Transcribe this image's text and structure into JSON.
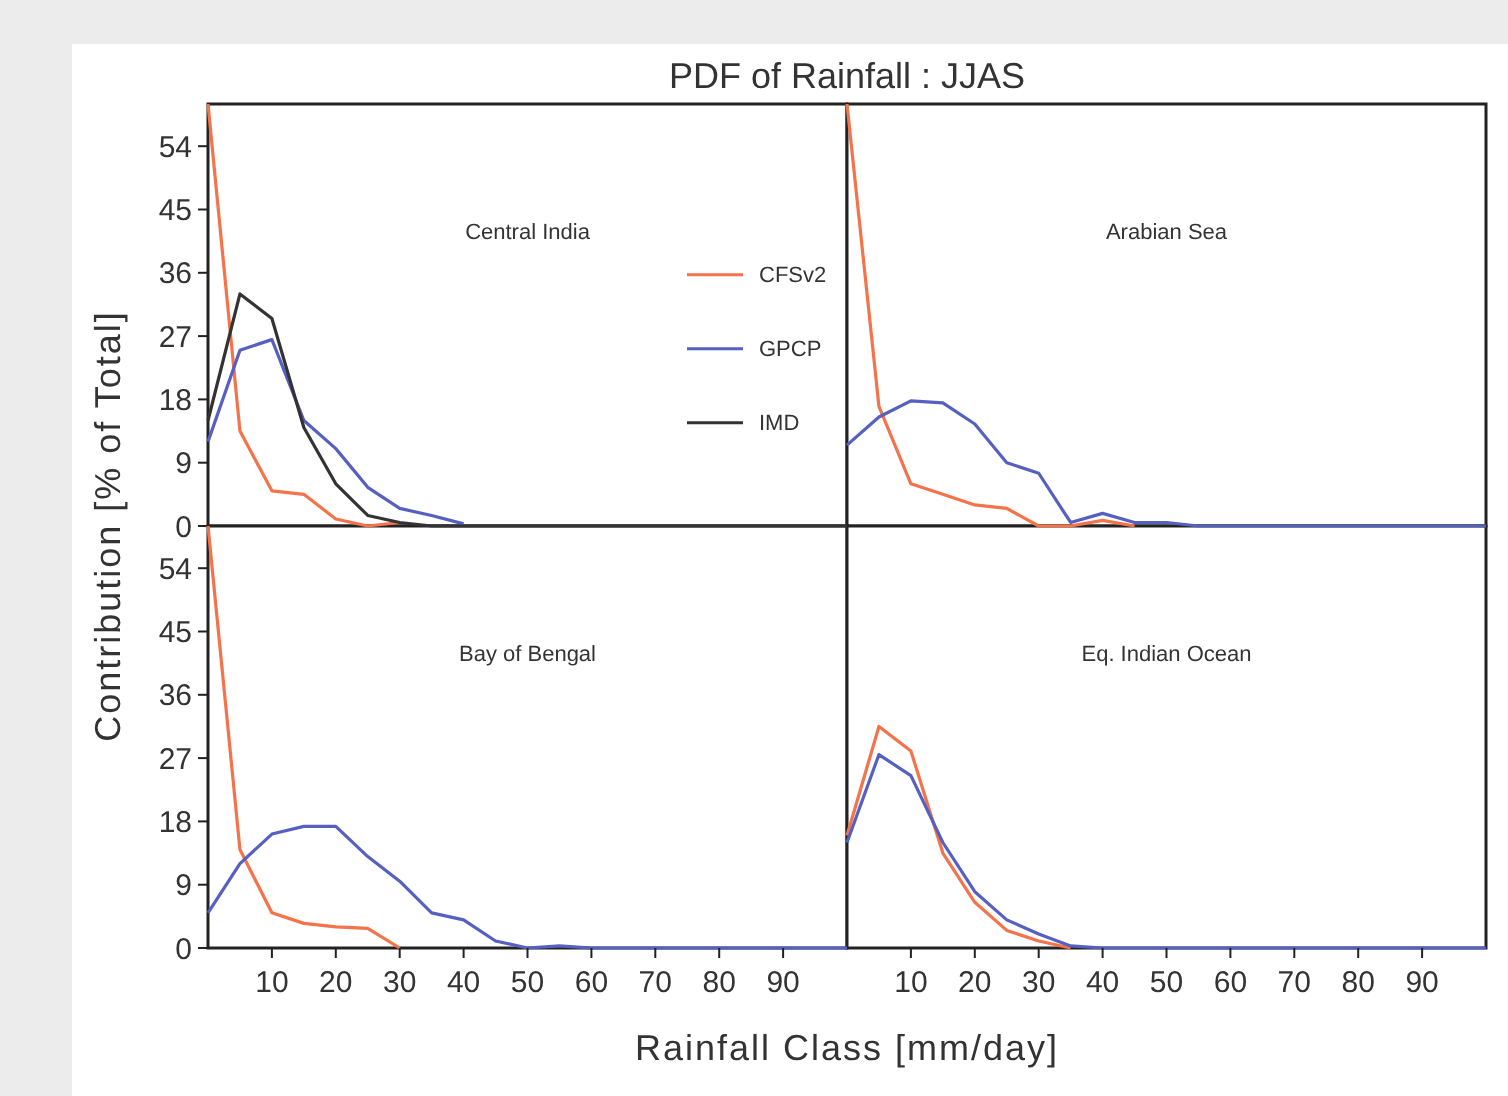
{
  "chart_data": [
    {
      "type": "line",
      "title": "PDF of Rainfall : JJAS",
      "subtitle": "Central India",
      "ylabel": "Contribution [% of Total]",
      "x": [
        0,
        5,
        10,
        15,
        20,
        25,
        30,
        35,
        40,
        45,
        50,
        55,
        60,
        65,
        70,
        75,
        80,
        85,
        90,
        95,
        100
      ],
      "xlim": [
        0,
        100
      ],
      "ylim": [
        0,
        60
      ],
      "yticks": [
        0,
        9,
        18,
        27,
        36,
        45,
        54
      ],
      "tick_labels": "y",
      "legend": "right",
      "series": [
        {
          "name": "CFSv2",
          "color": "#f4734a",
          "values": [
            60,
            13.5,
            5,
            4.5,
            1,
            0,
            0.5,
            null,
            null,
            null,
            null,
            null,
            null,
            null,
            null,
            null,
            null,
            null,
            null,
            null,
            null
          ]
        },
        {
          "name": "GPCP",
          "color": "#5560c0",
          "values": [
            12,
            25,
            26.5,
            15,
            11,
            5.5,
            2.5,
            1.5,
            0.3,
            null,
            null,
            null,
            null,
            null,
            null,
            null,
            null,
            null,
            null,
            null,
            null
          ]
        },
        {
          "name": "IMD",
          "color": "#333333",
          "values": [
            15,
            33,
            29.5,
            14,
            6,
            1.5,
            0.5,
            0,
            0,
            0,
            0,
            0,
            0,
            0,
            0,
            0,
            0,
            0,
            0,
            0,
            0
          ]
        }
      ]
    },
    {
      "type": "line",
      "subtitle": "Arabian Sea",
      "x": [
        0,
        5,
        10,
        15,
        20,
        25,
        30,
        35,
        40,
        45,
        50,
        55,
        60,
        65,
        70,
        75,
        80,
        85,
        90,
        95,
        100
      ],
      "xlim": [
        0,
        100
      ],
      "ylim": [
        0,
        60
      ],
      "tick_labels": false,
      "series": [
        {
          "color": "#f4734a",
          "values": [
            60,
            17,
            6,
            4.5,
            3,
            2.5,
            0,
            0,
            0.8,
            0,
            null,
            null,
            null,
            null,
            null,
            null,
            null,
            null,
            null,
            null,
            null
          ]
        },
        {
          "color": "#5560c0",
          "values": [
            11.5,
            15.5,
            17.8,
            17.5,
            14.5,
            9,
            7.5,
            0.5,
            1.8,
            0.5,
            0.5,
            0,
            0,
            0,
            0,
            0,
            0,
            0,
            0,
            0,
            0
          ]
        }
      ]
    },
    {
      "type": "line",
      "subtitle": "Bay of Bengal",
      "xlabel": "Rainfall Class [mm/day]",
      "x": [
        0,
        5,
        10,
        15,
        20,
        25,
        30,
        35,
        40,
        45,
        50,
        55,
        60,
        65,
        70,
        75,
        80,
        85,
        90,
        95,
        100
      ],
      "xlim": [
        0,
        100
      ],
      "ylim": [
        0,
        60
      ],
      "xticks": [
        10,
        20,
        30,
        40,
        50,
        60,
        70,
        80,
        90
      ],
      "yticks": [
        0,
        9,
        18,
        27,
        36,
        45,
        54
      ],
      "series": [
        {
          "color": "#f4734a",
          "values": [
            60,
            14,
            5,
            3.5,
            3,
            2.8,
            0,
            null,
            null,
            null,
            null,
            null,
            null,
            null,
            null,
            null,
            null,
            null,
            null,
            null,
            null
          ]
        },
        {
          "color": "#5560c0",
          "values": [
            5,
            12,
            16.2,
            17.3,
            17.3,
            13,
            9.5,
            5,
            4,
            1,
            0,
            0.3,
            0,
            0,
            0,
            0,
            0,
            0,
            0,
            0,
            0
          ]
        }
      ]
    },
    {
      "type": "line",
      "subtitle": "Eq. Indian Ocean",
      "x": [
        0,
        5,
        10,
        15,
        20,
        25,
        30,
        35,
        40,
        45,
        50,
        55,
        60,
        65,
        70,
        75,
        80,
        85,
        90,
        95,
        100
      ],
      "xlim": [
        0,
        100
      ],
      "ylim": [
        0,
        60
      ],
      "xticks": [
        10,
        20,
        30,
        40,
        50,
        60,
        70,
        80,
        90
      ],
      "tick_labels": "x",
      "series": [
        {
          "color": "#f4734a",
          "values": [
            16,
            31.5,
            28,
            13.5,
            6.5,
            2.5,
            1,
            0,
            null,
            null,
            null,
            null,
            null,
            null,
            null,
            null,
            null,
            null,
            null,
            null,
            null
          ]
        },
        {
          "color": "#5560c0",
          "values": [
            15,
            27.5,
            24.5,
            15,
            8,
            4,
            2,
            0.3,
            0,
            0,
            0,
            0,
            0,
            0,
            0,
            0,
            0,
            0,
            0,
            0,
            0
          ]
        }
      ]
    }
  ]
}
